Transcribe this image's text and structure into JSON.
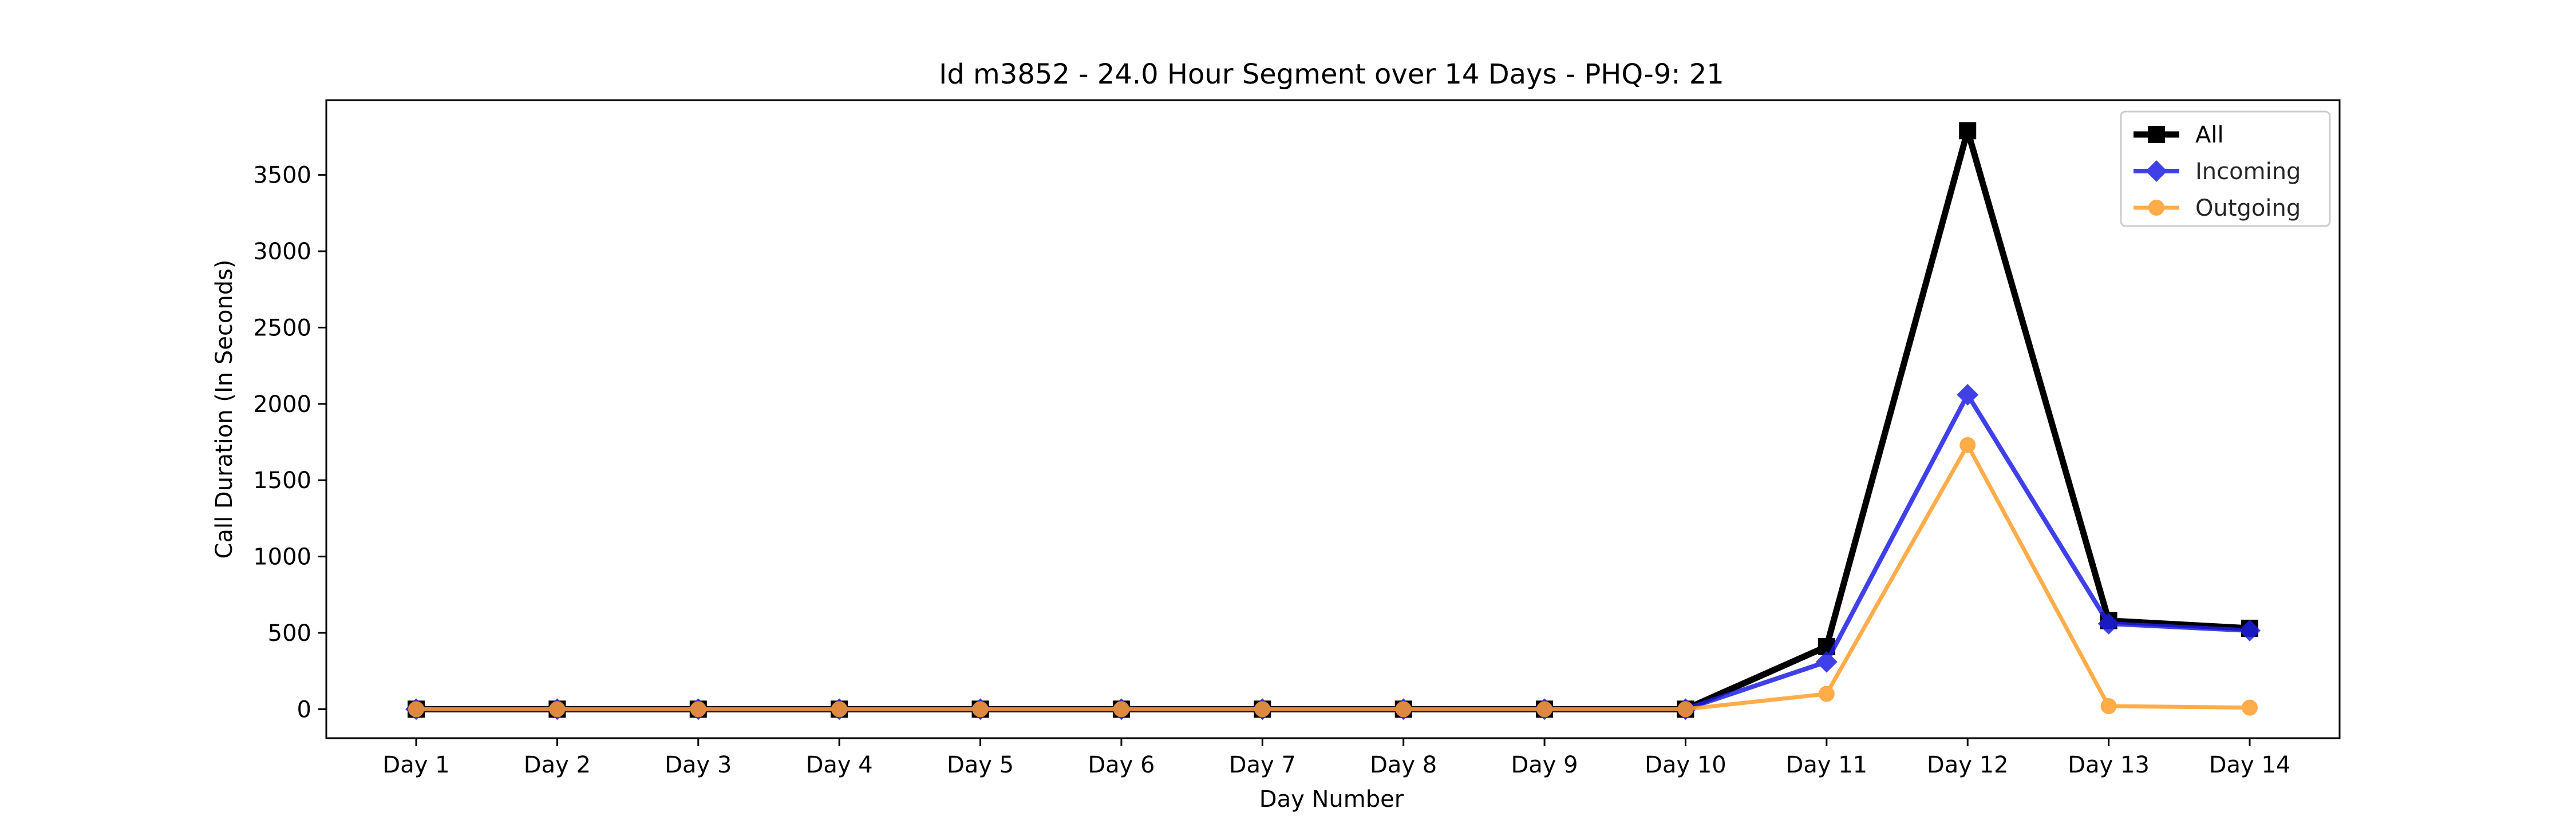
{
  "chart_data": {
    "type": "line",
    "title": "Id m3852 - 24.0 Hour Segment over 14 Days - PHQ-9: 21",
    "xlabel": "Day Number",
    "ylabel": "Call Duration (In Seconds)",
    "categories": [
      "Day 1",
      "Day 2",
      "Day 3",
      "Day 4",
      "Day 5",
      "Day 6",
      "Day 7",
      "Day 8",
      "Day 9",
      "Day 10",
      "Day 11",
      "Day 12",
      "Day 13",
      "Day 14"
    ],
    "ylim": [
      -190,
      3990
    ],
    "yticks": [
      0,
      500,
      1000,
      1500,
      2000,
      2500,
      3000,
      3500
    ],
    "legend_position": "upper right",
    "grid": false,
    "series": [
      {
        "name": "All",
        "color": "#000000",
        "marker": "square",
        "values": [
          0,
          0,
          0,
          0,
          0,
          0,
          0,
          0,
          0,
          0,
          410,
          3790,
          580,
          530
        ]
      },
      {
        "name": "Incoming",
        "color": "#1f1fe6",
        "marker": "diamond",
        "values": [
          0,
          0,
          0,
          0,
          0,
          0,
          0,
          0,
          0,
          0,
          310,
          2060,
          560,
          515
        ]
      },
      {
        "name": "Outgoing",
        "color": "#ff9e2a",
        "marker": "circle",
        "values": [
          0,
          0,
          0,
          0,
          0,
          0,
          0,
          0,
          0,
          0,
          100,
          1730,
          20,
          10
        ]
      }
    ]
  }
}
